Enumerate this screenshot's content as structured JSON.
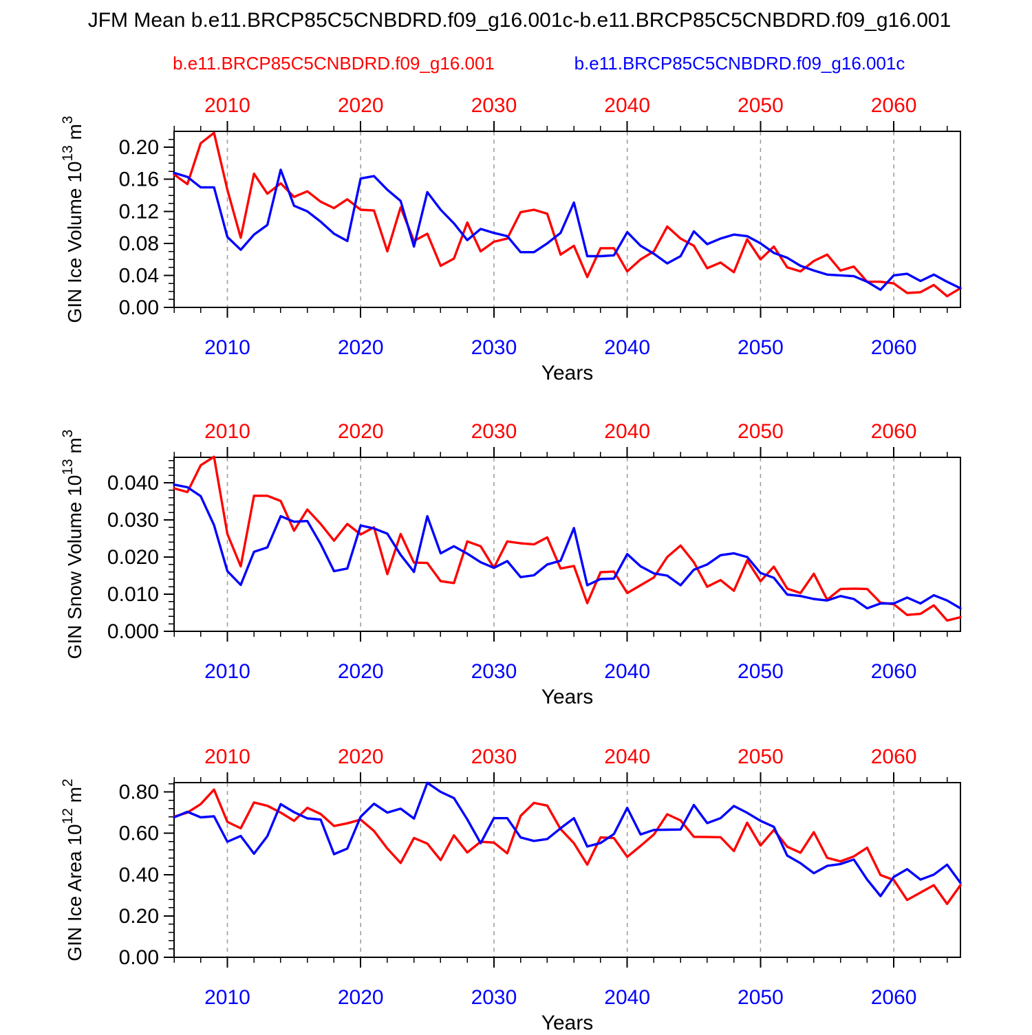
{
  "title": "JFM Mean b.e11.BRCP85C5CNBDRD.f09_g16.001c-b.e11.BRCP85C5CNBDRD.f09_g16.001",
  "legend": {
    "red_label": "b.e11.BRCP85C5CNBDRD.f09_g16.001",
    "blue_label": "b.e11.BRCP85C5CNBDRD.f09_g16.001c",
    "red_color": "#ff0000",
    "blue_color": "#0000ff"
  },
  "chart_data": [
    {
      "type": "line",
      "title": "",
      "xlabel": "Years",
      "ylabel_parts": [
        [
          "GIN Ice Volume 10",
          "n"
        ],
        [
          "13",
          "s"
        ],
        [
          " m",
          "n"
        ],
        [
          "3",
          "s"
        ]
      ],
      "x": {
        "ticks": [
          "2010",
          "2020",
          "2030",
          "2040",
          "2050",
          "2060"
        ],
        "tick_values": [
          2010,
          2020,
          2030,
          2040,
          2050,
          2060
        ],
        "range": [
          2006,
          2065
        ],
        "minor_step": 2,
        "top_label_color": "#ff0000",
        "bottom_label_color": "#0000ff"
      },
      "y": {
        "ticks": [
          "0.00",
          "0.04",
          "0.08",
          "0.12",
          "0.16",
          "0.20"
        ],
        "tick_values": [
          0,
          0.04,
          0.08,
          0.12,
          0.16,
          0.2
        ],
        "range": [
          0,
          0.2199
        ],
        "minor_step": 0.01
      },
      "grid": "vertical-dashed-at-decades",
      "years_start": 2006,
      "series": [
        {
          "name": "b.e11.BRCP85C5CNBDRD.f09_g16.001",
          "color": "#ff0000",
          "values": [
            0.166,
            0.154,
            0.205,
            0.218,
            0.147,
            0.087,
            0.167,
            0.142,
            0.155,
            0.138,
            0.145,
            0.132,
            0.124,
            0.135,
            0.122,
            0.121,
            0.07,
            0.125,
            0.083,
            0.092,
            0.052,
            0.061,
            0.106,
            0.07,
            0.082,
            0.086,
            0.119,
            0.122,
            0.117,
            0.066,
            0.077,
            0.038,
            0.074,
            0.074,
            0.045,
            0.06,
            0.07,
            0.101,
            0.086,
            0.077,
            0.049,
            0.056,
            0.044,
            0.085,
            0.06,
            0.076,
            0.05,
            0.045,
            0.058,
            0.066,
            0.046,
            0.051,
            0.032,
            0.032,
            0.03,
            0.018,
            0.019,
            0.028,
            0.014,
            0.024
          ]
        },
        {
          "name": "b.e11.BRCP85C5CNBDRD.f09_g16.001c",
          "color": "#0000ff",
          "values": [
            0.168,
            0.163,
            0.15,
            0.15,
            0.088,
            0.072,
            0.091,
            0.103,
            0.172,
            0.127,
            0.12,
            0.107,
            0.092,
            0.083,
            0.161,
            0.164,
            0.147,
            0.133,
            0.076,
            0.144,
            0.122,
            0.105,
            0.084,
            0.098,
            0.093,
            0.089,
            0.069,
            0.069,
            0.08,
            0.093,
            0.131,
            0.064,
            0.064,
            0.065,
            0.094,
            0.077,
            0.067,
            0.055,
            0.064,
            0.095,
            0.079,
            0.086,
            0.091,
            0.089,
            0.08,
            0.068,
            0.062,
            0.052,
            0.046,
            0.041,
            0.04,
            0.039,
            0.032,
            0.022,
            0.04,
            0.042,
            0.033,
            0.041,
            0.032,
            0.024
          ]
        }
      ]
    },
    {
      "type": "line",
      "title": "",
      "xlabel": "Years",
      "ylabel_parts": [
        [
          "GIN Snow Volume 10",
          "n"
        ],
        [
          "13",
          "s"
        ],
        [
          " m",
          "n"
        ],
        [
          "3",
          "s"
        ]
      ],
      "x": {
        "ticks": [
          "2010",
          "2020",
          "2030",
          "2040",
          "2050",
          "2060"
        ],
        "tick_values": [
          2010,
          2020,
          2030,
          2040,
          2050,
          2060
        ],
        "range": [
          2006,
          2065
        ],
        "minor_step": 2,
        "top_label_color": "#ff0000",
        "bottom_label_color": "#0000ff"
      },
      "y": {
        "ticks": [
          "0.000",
          "0.010",
          "0.020",
          "0.030",
          "0.040"
        ],
        "tick_values": [
          0,
          0.01,
          0.02,
          0.03,
          0.04
        ],
        "range": [
          0,
          0.04685
        ],
        "minor_step": 0.002
      },
      "grid": "vertical-dashed-at-decades",
      "years_start": 2006,
      "series": [
        {
          "name": "b.e11.BRCP85C5CNBDRD.f09_g16.001",
          "color": "#ff0000",
          "values": [
            0.0385,
            0.0375,
            0.0447,
            0.047,
            0.0262,
            0.0175,
            0.0365,
            0.0365,
            0.0351,
            0.0271,
            0.0328,
            0.0289,
            0.0244,
            0.0289,
            0.0261,
            0.028,
            0.0154,
            0.0262,
            0.0185,
            0.0184,
            0.0135,
            0.013,
            0.0242,
            0.0229,
            0.0171,
            0.0242,
            0.0237,
            0.0234,
            0.0253,
            0.0169,
            0.0176,
            0.0076,
            0.0159,
            0.0161,
            0.0103,
            0.0124,
            0.0145,
            0.02,
            0.0231,
            0.0186,
            0.012,
            0.0138,
            0.0109,
            0.0191,
            0.0135,
            0.0174,
            0.0115,
            0.0103,
            0.0155,
            0.0085,
            0.0114,
            0.0115,
            0.0114,
            0.0077,
            0.0073,
            0.0044,
            0.0047,
            0.007,
            0.0029,
            0.0038
          ]
        },
        {
          "name": "b.e11.BRCP85C5CNBDRD.f09_g16.001c",
          "color": "#0000ff",
          "values": [
            0.0395,
            0.0388,
            0.0364,
            0.0286,
            0.0162,
            0.0125,
            0.0214,
            0.0226,
            0.031,
            0.0295,
            0.0297,
            0.0235,
            0.0162,
            0.0169,
            0.0285,
            0.0277,
            0.0263,
            0.0206,
            0.016,
            0.031,
            0.021,
            0.0229,
            0.0209,
            0.0186,
            0.0171,
            0.0189,
            0.0146,
            0.0151,
            0.018,
            0.019,
            0.0278,
            0.0124,
            0.0141,
            0.0142,
            0.0208,
            0.0175,
            0.0156,
            0.015,
            0.0124,
            0.0166,
            0.018,
            0.0205,
            0.021,
            0.02,
            0.0157,
            0.0144,
            0.0099,
            0.0095,
            0.0087,
            0.0083,
            0.0095,
            0.0087,
            0.0062,
            0.0075,
            0.0075,
            0.0091,
            0.0075,
            0.0097,
            0.0083,
            0.0062
          ]
        }
      ]
    },
    {
      "type": "line",
      "title": "",
      "xlabel": "Years",
      "ylabel_parts": [
        [
          "GIN Ice Area 10",
          "n"
        ],
        [
          "12",
          "s"
        ],
        [
          " m",
          "n"
        ],
        [
          "2",
          "s"
        ]
      ],
      "x": {
        "ticks": [
          "2010",
          "2020",
          "2030",
          "2040",
          "2050",
          "2060"
        ],
        "tick_values": [
          2010,
          2020,
          2030,
          2040,
          2050,
          2060
        ],
        "range": [
          2006,
          2065
        ],
        "minor_step": 2,
        "top_label_color": "#ff0000",
        "bottom_label_color": "#0000ff"
      },
      "y": {
        "ticks": [
          "0.00",
          "0.20",
          "0.40",
          "0.60",
          "0.80"
        ],
        "tick_values": [
          0,
          0.2,
          0.4,
          0.6,
          0.8
        ],
        "range": [
          0,
          0.845
        ],
        "minor_step": 0.04
      },
      "grid": "vertical-dashed-at-decades",
      "years_start": 2006,
      "series": [
        {
          "name": "b.e11.BRCP85C5CNBDRD.f09_g16.001",
          "color": "#ff0000",
          "values": [
            0.68,
            0.7,
            0.741,
            0.811,
            0.655,
            0.624,
            0.749,
            0.733,
            0.7,
            0.66,
            0.723,
            0.693,
            0.635,
            0.648,
            0.666,
            0.611,
            0.526,
            0.456,
            0.577,
            0.55,
            0.47,
            0.59,
            0.507,
            0.559,
            0.555,
            0.503,
            0.684,
            0.747,
            0.734,
            0.62,
            0.552,
            0.448,
            0.58,
            0.577,
            0.486,
            0.539,
            0.594,
            0.692,
            0.662,
            0.583,
            0.582,
            0.581,
            0.514,
            0.651,
            0.541,
            0.616,
            0.535,
            0.506,
            0.605,
            0.481,
            0.464,
            0.488,
            0.53,
            0.398,
            0.374,
            0.277,
            0.313,
            0.349,
            0.258,
            0.349
          ]
        },
        {
          "name": "b.e11.BRCP85C5CNBDRD.f09_g16.001c",
          "color": "#0000ff",
          "values": [
            0.677,
            0.704,
            0.677,
            0.682,
            0.559,
            0.587,
            0.501,
            0.586,
            0.741,
            0.702,
            0.672,
            0.666,
            0.499,
            0.526,
            0.68,
            0.743,
            0.7,
            0.719,
            0.671,
            0.844,
            0.8,
            0.77,
            0.667,
            0.552,
            0.673,
            0.673,
            0.58,
            0.563,
            0.572,
            0.624,
            0.673,
            0.536,
            0.553,
            0.596,
            0.723,
            0.594,
            0.616,
            0.617,
            0.618,
            0.737,
            0.649,
            0.673,
            0.732,
            0.699,
            0.66,
            0.631,
            0.492,
            0.455,
            0.407,
            0.442,
            0.451,
            0.473,
            0.376,
            0.296,
            0.389,
            0.426,
            0.376,
            0.4,
            0.448,
            0.36
          ]
        }
      ]
    }
  ]
}
